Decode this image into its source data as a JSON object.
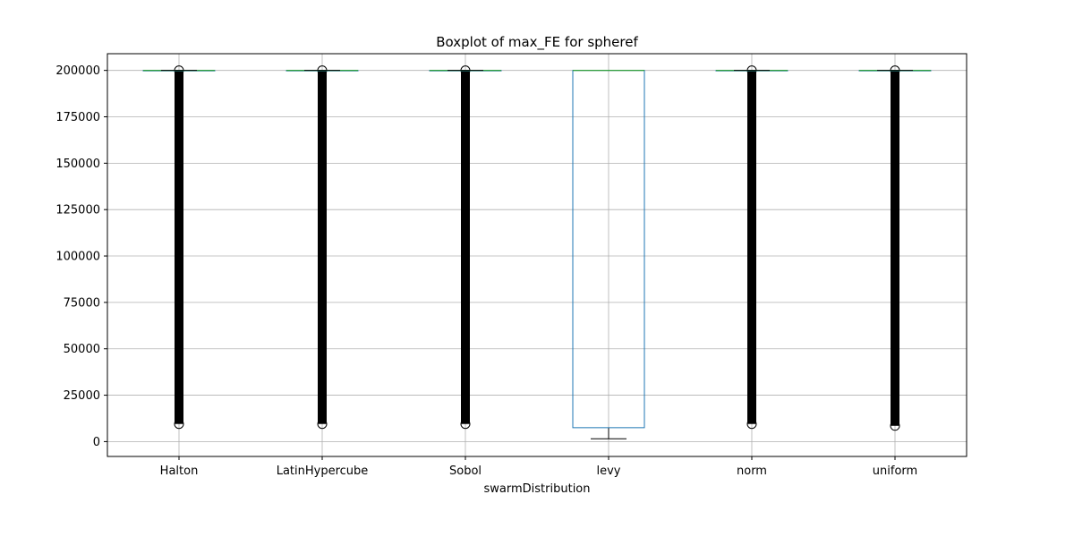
{
  "chart_data": {
    "type": "boxplot",
    "title": "Boxplot of max_FE for spheref",
    "xlabel": "swarmDistribution",
    "ylabel": "",
    "ylim": [
      -8000,
      209000
    ],
    "yticks": [
      0,
      25000,
      50000,
      75000,
      100000,
      125000,
      150000,
      175000,
      200000
    ],
    "grid": true,
    "colors": {
      "box": "#1f77b4",
      "median": "#2ca02c",
      "whisker": "#000000",
      "flier": "#000000",
      "grid": "#b0b0b0"
    },
    "categories": [
      "Halton",
      "LatinHypercube",
      "Sobol",
      "levy",
      "norm",
      "uniform"
    ],
    "boxes": [
      {
        "name": "Halton",
        "q1": 200000,
        "median": 200000,
        "q3": 200000,
        "whislo": 200000,
        "whishi": 200000,
        "flier_min": 9500,
        "flier_max": 200000
      },
      {
        "name": "LatinHypercube",
        "q1": 200000,
        "median": 200000,
        "q3": 200000,
        "whislo": 200000,
        "whishi": 200000,
        "flier_min": 9500,
        "flier_max": 200000
      },
      {
        "name": "Sobol",
        "q1": 200000,
        "median": 200000,
        "q3": 200000,
        "whislo": 200000,
        "whishi": 200000,
        "flier_min": 9500,
        "flier_max": 200000
      },
      {
        "name": "levy",
        "q1": 7500,
        "median": 200000,
        "q3": 200000,
        "whislo": 1500,
        "whishi": 200000,
        "flier_min": null,
        "flier_max": null
      },
      {
        "name": "norm",
        "q1": 200000,
        "median": 200000,
        "q3": 200000,
        "whislo": 200000,
        "whishi": 200000,
        "flier_min": 9500,
        "flier_max": 200000
      },
      {
        "name": "uniform",
        "q1": 200000,
        "median": 200000,
        "q3": 200000,
        "whislo": 200000,
        "whishi": 200000,
        "flier_min": 8500,
        "flier_max": 200000
      }
    ]
  }
}
